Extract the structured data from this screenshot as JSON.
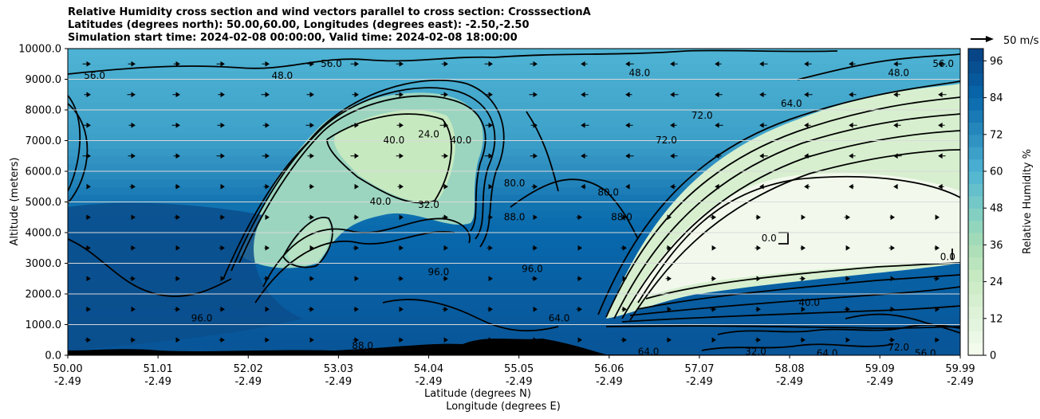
{
  "chart_data": {
    "type": "contourf",
    "title_lines": [
      "Relative Humidity cross section and wind vectors parallel to cross section: CrosssectionA",
      "Latitudes (degrees north): 50.00,60.00, Longitudes (degrees east): -2.50,-2.50",
      "Simulation start time: 2024-02-08 00:00:00, Valid time: 2024-02-08 18:00:00"
    ],
    "ylabel": "Altitude (meters)",
    "xlabel_lines": [
      "Latitude (degrees N)",
      "Longitude (degrees E)"
    ],
    "ylim": [
      0,
      10000
    ],
    "xlim": [
      50.0,
      59.99
    ],
    "y_ticks": [
      0,
      1000,
      2000,
      3000,
      4000,
      5000,
      6000,
      7000,
      8000,
      9000,
      10000
    ],
    "y_tick_labels": [
      "0.0",
      "1000.0",
      "2000.0",
      "3000.0",
      "4000.0",
      "5000.0",
      "6000.0",
      "7000.0",
      "8000.0",
      "9000.0",
      "10000.0"
    ],
    "x_ticks": [
      50.0,
      51.01,
      52.02,
      53.03,
      54.04,
      55.05,
      56.06,
      57.07,
      58.08,
      59.09,
      59.99
    ],
    "x_tick_lat_labels": [
      "50.00",
      "51.01",
      "52.02",
      "53.03",
      "54.04",
      "55.05",
      "56.06",
      "57.07",
      "58.08",
      "59.09",
      "59.99"
    ],
    "x_tick_lon_labels": [
      "-2.49",
      "-2.49",
      "-2.49",
      "-2.49",
      "-2.49",
      "-2.49",
      "-2.49",
      "-2.49",
      "-2.49",
      "-2.49",
      "-2.49"
    ],
    "colorbar": {
      "label": "Relative Humidity %",
      "min": 0,
      "max": 100,
      "ticks": [
        0,
        12,
        24,
        36,
        48,
        60,
        72,
        84,
        96
      ],
      "tick_labels": [
        "0",
        "12",
        "24",
        "36",
        "48",
        "60",
        "72",
        "84",
        "96"
      ]
    },
    "quiver_key_label": "50 m/s",
    "contour_labels": [
      {
        "text": "56.0",
        "x": 50.3,
        "y": 9100
      },
      {
        "text": "56.0",
        "x": 52.95,
        "y": 9500
      },
      {
        "text": "48.0",
        "x": 52.4,
        "y": 9100
      },
      {
        "text": "24.0",
        "x": 54.04,
        "y": 7200
      },
      {
        "text": "40.0",
        "x": 53.65,
        "y": 7000
      },
      {
        "text": "40.0",
        "x": 54.4,
        "y": 7000
      },
      {
        "text": "32.0",
        "x": 54.04,
        "y": 4900
      },
      {
        "text": "40.0",
        "x": 53.5,
        "y": 5000
      },
      {
        "text": "80.0",
        "x": 55.0,
        "y": 5600
      },
      {
        "text": "88.0",
        "x": 55.0,
        "y": 4500
      },
      {
        "text": "96.0",
        "x": 54.15,
        "y": 2700
      },
      {
        "text": "80.0",
        "x": 56.05,
        "y": 5300
      },
      {
        "text": "72.0",
        "x": 56.7,
        "y": 7000
      },
      {
        "text": "88.0",
        "x": 56.2,
        "y": 4500
      },
      {
        "text": "72.0",
        "x": 57.1,
        "y": 7800
      },
      {
        "text": "48.0",
        "x": 56.4,
        "y": 9200
      },
      {
        "text": "48.0",
        "x": 59.3,
        "y": 9200
      },
      {
        "text": "56.0",
        "x": 59.8,
        "y": 9500
      },
      {
        "text": "64.0",
        "x": 58.1,
        "y": 8200
      },
      {
        "text": "0.0",
        "x": 57.85,
        "y": 3800
      },
      {
        "text": "0.0",
        "x": 59.85,
        "y": 3200
      },
      {
        "text": "40.0",
        "x": 58.3,
        "y": 1700
      },
      {
        "text": "64.0",
        "x": 56.5,
        "y": 100
      },
      {
        "text": "32.0",
        "x": 57.7,
        "y": 100
      },
      {
        "text": "64.0",
        "x": 58.5,
        "y": 50
      },
      {
        "text": "72.0",
        "x": 59.3,
        "y": 250
      },
      {
        "text": "56.0",
        "x": 59.6,
        "y": 50
      },
      {
        "text": "96.0",
        "x": 51.5,
        "y": 1200
      },
      {
        "text": "88.0",
        "x": 53.3,
        "y": 300
      },
      {
        "text": "64.0",
        "x": 55.5,
        "y": 1200
      },
      {
        "text": "96.0",
        "x": 55.2,
        "y": 2800
      }
    ]
  }
}
